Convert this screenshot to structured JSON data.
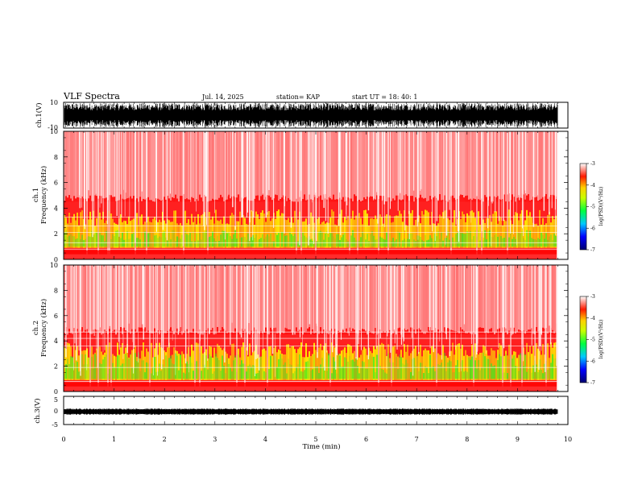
{
  "header": {
    "title": "VLF Spectra",
    "date": "Jul. 14, 2025",
    "station": "station= KAP",
    "start": "start UT =   18: 40: 1"
  },
  "colors": {
    "spec_low": "#ff0000",
    "spec_mid": "#ffee00",
    "spec_high": "#22ee22",
    "colorbar": [
      "#000080",
      "#0000ff",
      "#00ffff",
      "#00ff00",
      "#ffff00",
      "#ff0000",
      "#ffffff"
    ]
  },
  "chart_data": [
    {
      "type": "line",
      "name": "ch1-waveform",
      "ylabel": "ch.1(V)",
      "ylim": [
        -10,
        10
      ],
      "yticks": [
        "10",
        "-10"
      ],
      "xlim": [
        0,
        10
      ],
      "signal_span_min": [
        0,
        9.8
      ]
    },
    {
      "type": "heatmap",
      "name": "ch1-spectrogram",
      "ylabel": "ch.1\nFrequency (kHz)",
      "ylim": [
        0,
        10
      ],
      "yticks": [
        "0",
        "2",
        "4",
        "6",
        "8",
        "10"
      ],
      "xlim": [
        0,
        10
      ],
      "signal_span_min": [
        0,
        9.8
      ],
      "colorbar": {
        "label": "log(PSD)(V²/Hz)",
        "range": [
          -7,
          -3
        ],
        "ticks": [
          "-3",
          "-4",
          "-5",
          "-6",
          "-7"
        ]
      }
    },
    {
      "type": "heatmap",
      "name": "ch2-spectrogram",
      "ylabel": "ch.2\nFrequency (kHz)",
      "ylim": [
        0,
        10
      ],
      "yticks": [
        "0",
        "2",
        "4",
        "6",
        "8",
        "10"
      ],
      "xlim": [
        0,
        10
      ],
      "signal_span_min": [
        0,
        9.8
      ],
      "colorbar": {
        "label": "log(PSD)(V²/Hz)",
        "range": [
          -7,
          -3
        ],
        "ticks": [
          "-3",
          "-4",
          "-5",
          "-6",
          "-7"
        ]
      }
    },
    {
      "type": "line",
      "name": "ch3-waveform",
      "ylabel": "ch.3(V)",
      "ylim": [
        -5,
        5
      ],
      "yticks": [
        "5",
        "0",
        "-5"
      ],
      "xlim": [
        0,
        10
      ],
      "signal_span_min": [
        0,
        9.8
      ],
      "xlabel": "Time (min)",
      "xticks": [
        "0",
        "1",
        "2",
        "3",
        "4",
        "5",
        "6",
        "7",
        "8",
        "9",
        "10"
      ]
    }
  ]
}
